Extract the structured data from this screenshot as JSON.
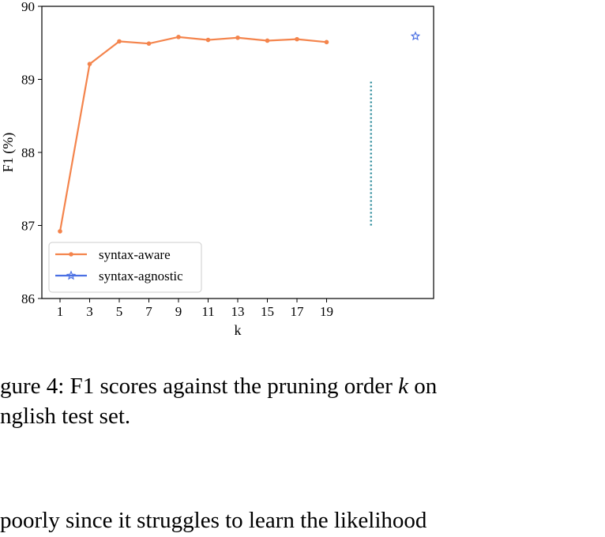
{
  "chart_data": {
    "type": "line",
    "title": "",
    "xlabel": "k",
    "ylabel": "F1 (%)",
    "ylim": [
      86,
      90
    ],
    "yticks": [
      "86",
      "87",
      "88",
      "89",
      "90"
    ],
    "xticks": [
      "1",
      "3",
      "5",
      "7",
      "9",
      "11",
      "13",
      "15",
      "17",
      "19"
    ],
    "grid": false,
    "legend": "lower-left",
    "series": [
      {
        "name": "syntax-aware",
        "marker": "dot",
        "color": "#f4844c",
        "x": [
          1,
          3,
          5,
          7,
          9,
          11,
          13,
          15,
          17,
          19
        ],
        "values": [
          86.92,
          89.21,
          89.52,
          89.49,
          89.58,
          89.54,
          89.57,
          89.53,
          89.55,
          89.51
        ]
      },
      {
        "name": "syntax-agnostic",
        "marker": "star",
        "color": "#4a6fe3",
        "x": [
          25
        ],
        "values": [
          89.59
        ]
      }
    ],
    "vertical_line": {
      "x": 22,
      "y_from": 87.0,
      "y_to": 89.0,
      "style": "dotted",
      "color": "#2a8a9a"
    }
  },
  "caption": {
    "prefix": "gure 4: F1 scores against the pruning order ",
    "var": "k",
    "suffix": " on",
    "line2": "nglish test set."
  },
  "body_text": " poorly since it struggles to learn the likelihood"
}
